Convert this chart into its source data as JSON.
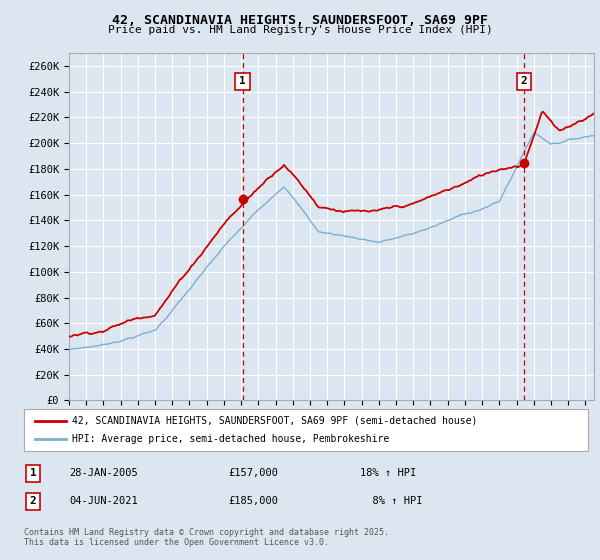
{
  "title": "42, SCANDINAVIA HEIGHTS, SAUNDERSFOOT, SA69 9PF",
  "subtitle": "Price paid vs. HM Land Registry's House Price Index (HPI)",
  "ylabel_ticks": [
    "£0",
    "£20K",
    "£40K",
    "£60K",
    "£80K",
    "£100K",
    "£120K",
    "£140K",
    "£160K",
    "£180K",
    "£200K",
    "£220K",
    "£240K",
    "£260K"
  ],
  "ytick_values": [
    0,
    20000,
    40000,
    60000,
    80000,
    100000,
    120000,
    140000,
    160000,
    180000,
    200000,
    220000,
    240000,
    260000
  ],
  "ylim": [
    0,
    270000
  ],
  "xlim_start": 1995.0,
  "xlim_end": 2025.5,
  "bg_color": "#dce6f1",
  "grid_color": "#ffffff",
  "red_line_color": "#cc0000",
  "blue_line_color": "#7bafd4",
  "vline_color": "#cc0000",
  "marker1_x": 2005.08,
  "marker1_y": 157000,
  "marker2_x": 2021.42,
  "marker2_y": 185000,
  "legend_label_red": "42, SCANDINAVIA HEIGHTS, SAUNDERSFOOT, SA69 9PF (semi-detached house)",
  "legend_label_blue": "HPI: Average price, semi-detached house, Pembrokeshire",
  "footer": "Contains HM Land Registry data © Crown copyright and database right 2025.\nThis data is licensed under the Open Government Licence v3.0.",
  "xtick_years": [
    1995,
    1996,
    1997,
    1998,
    1999,
    2000,
    2001,
    2002,
    2003,
    2004,
    2005,
    2006,
    2007,
    2008,
    2009,
    2010,
    2011,
    2012,
    2013,
    2014,
    2015,
    2016,
    2017,
    2018,
    2019,
    2020,
    2021,
    2022,
    2023,
    2024,
    2025
  ]
}
